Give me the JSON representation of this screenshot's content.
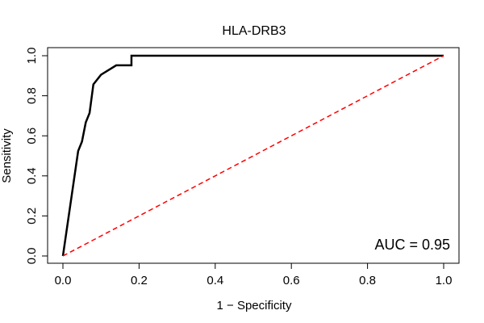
{
  "chart_data": {
    "type": "line",
    "title": "HLA-DRB3",
    "xlabel": "1 − Specificity",
    "ylabel": "Sensitivity",
    "xlim": [
      0,
      1
    ],
    "ylim": [
      0,
      1
    ],
    "xticks": [
      "0.0",
      "0.2",
      "0.4",
      "0.6",
      "0.8",
      "1.0"
    ],
    "yticks": [
      "0.0",
      "0.2",
      "0.4",
      "0.6",
      "0.8",
      "1.0"
    ],
    "grid": false,
    "legend": "none",
    "annotation": "AUC = 0.95",
    "series": [
      {
        "color": "#000000",
        "style": "solid",
        "x": [
          0.0,
          0.04,
          0.04,
          0.05,
          0.05,
          0.06,
          0.06,
          0.07,
          0.07,
          0.08,
          0.08,
          0.1,
          0.1,
          0.14,
          0.14,
          0.18,
          0.18,
          1.0
        ],
        "y": [
          0.0,
          0.524,
          0.524,
          0.571,
          0.571,
          0.667,
          0.667,
          0.714,
          0.714,
          0.857,
          0.857,
          0.905,
          0.905,
          0.952,
          0.952,
          0.952,
          1.0,
          1.0
        ]
      },
      {
        "color": "#ff0000",
        "style": "dashed",
        "x": [
          0.0,
          1.0
        ],
        "y": [
          0.0,
          1.0
        ]
      }
    ]
  }
}
